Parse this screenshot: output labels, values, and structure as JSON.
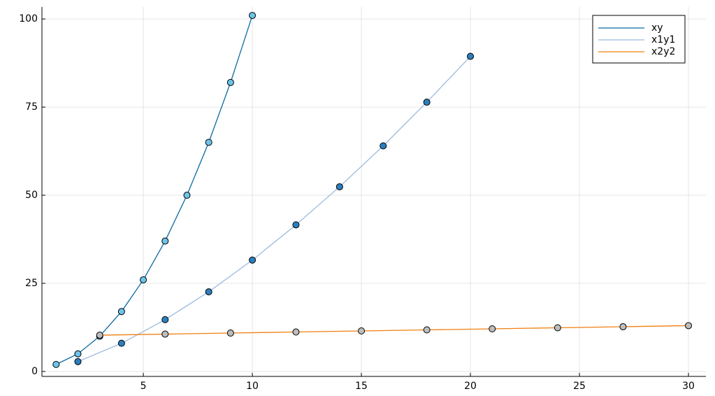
{
  "chart_data": {
    "type": "line",
    "series": [
      {
        "name": "xy",
        "color": "#0b6aa2",
        "marker_color": "#6cc4ea",
        "x": [
          1,
          2,
          3,
          4,
          5,
          6,
          7,
          8,
          9,
          10
        ],
        "values": [
          2,
          5,
          10,
          17,
          26,
          37,
          50,
          65,
          82,
          101
        ]
      },
      {
        "name": "x1y1",
        "color": "#9bbbe0",
        "marker_color": "#2b7fbf",
        "x": [
          2,
          4,
          6,
          8,
          10,
          12,
          14,
          16,
          18,
          20
        ],
        "values": [
          2.8,
          8,
          14.7,
          22.6,
          31.6,
          41.6,
          52.4,
          64,
          76.4,
          89.4
        ]
      },
      {
        "name": "x2y2",
        "color": "#f07f12",
        "marker_color": "#bdbdbd",
        "x": [
          3,
          6,
          9,
          12,
          15,
          18,
          21,
          24,
          27,
          30
        ],
        "values": [
          10.3,
          10.6,
          10.9,
          11.2,
          11.5,
          11.8,
          12.1,
          12.4,
          12.7,
          13.0
        ]
      }
    ],
    "xlim": [
      0.35,
      30.8
    ],
    "xticks": [
      5,
      10,
      15,
      20,
      25,
      30
    ],
    "ylim": [
      -1.4,
      103.4
    ],
    "yticks": [
      0,
      25,
      50,
      75,
      100
    ],
    "grid": true,
    "legend": "top-right"
  }
}
